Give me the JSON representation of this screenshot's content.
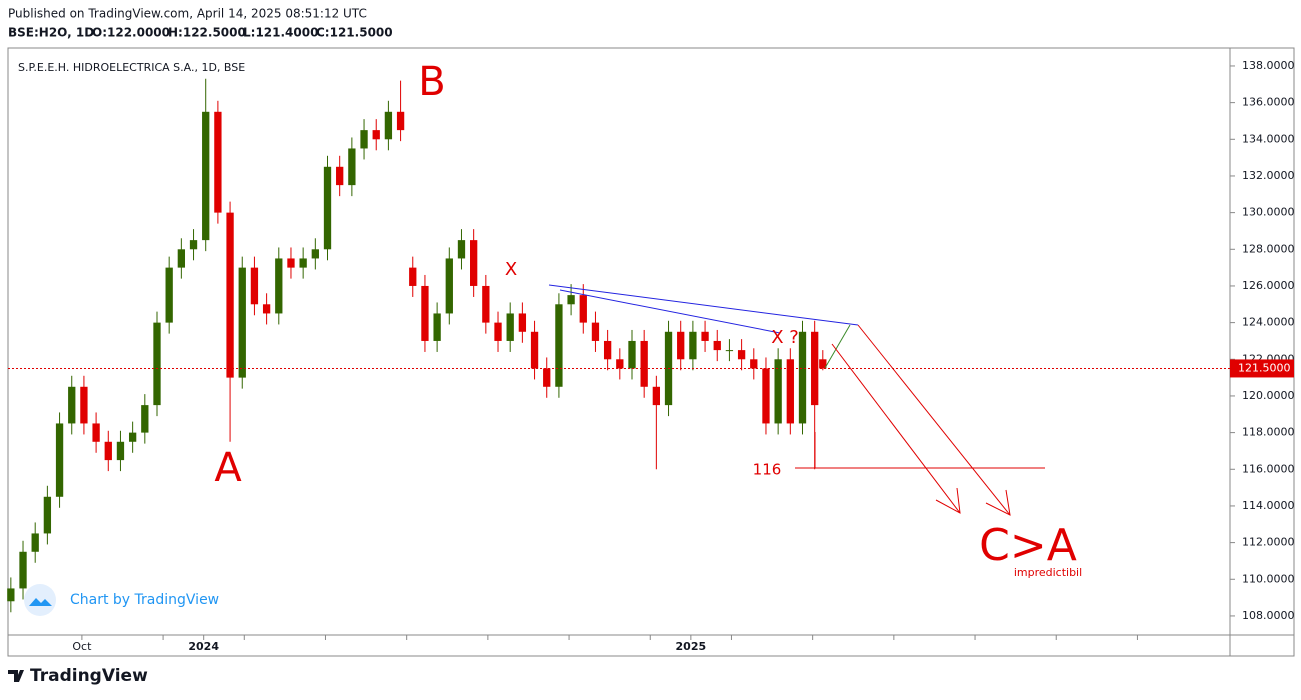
{
  "header": {
    "published": "Published on TradingView.com, April 14, 2025 08:51:12 UTC",
    "symbol": "BSE:H2O, 1D",
    "open": "O:122.0000",
    "high": "H:122.5000",
    "low": "L:121.4000",
    "close": "C:121.5000"
  },
  "chart_data": {
    "type": "candlestick",
    "title": "S.P.E.E.H. HIDROELECTRICA S.A., 1D, BSE",
    "up_color": "#336600",
    "down_color": "#e00000",
    "x": [
      -1.75,
      -1.45,
      -1.15,
      -0.85,
      -0.55,
      -0.25,
      0.05,
      0.35,
      0.65,
      0.95,
      1.25,
      1.55,
      1.85,
      2.15,
      2.45,
      2.75,
      3.05,
      3.35,
      3.65,
      3.95,
      4.25,
      4.55,
      4.85,
      5.15,
      5.45,
      5.75,
      6.05,
      6.35,
      6.65,
      6.95,
      7.25,
      7.55,
      7.85,
      8.15,
      8.45,
      8.75,
      9.05,
      9.35,
      9.65,
      9.95,
      10.25,
      10.55,
      10.85,
      11.15,
      11.45,
      11.75,
      12.05,
      12.35,
      12.65,
      12.95,
      13.25,
      13.55,
      13.85,
      14.15,
      14.45,
      14.75,
      15.05,
      15.35,
      15.65,
      15.95,
      16.25,
      16.55,
      16.85,
      17.15,
      17.45,
      17.75,
      18.05,
      18.25
    ],
    "open": [
      108.8,
      109.5,
      111.5,
      112.5,
      114.5,
      118.5,
      120.5,
      118.5,
      117.5,
      116.5,
      117.5,
      118,
      119.5,
      124,
      127,
      128,
      128.5,
      135.5,
      130,
      121,
      127,
      125,
      124.5,
      127.5,
      127,
      127.5,
      128,
      132.5,
      131.5,
      133.5,
      134.5,
      134,
      135.5,
      127,
      126,
      123,
      124.5,
      127.5,
      128.5,
      126,
      124,
      123,
      124.5,
      123.5,
      121.5,
      120.5,
      125,
      125.5,
      124,
      123,
      122,
      121.5,
      123,
      120.5,
      119.5,
      123.5,
      122,
      123.5,
      123,
      122.5,
      122.5,
      122,
      121.5,
      118.5,
      122,
      118.5,
      123.5,
      122
    ],
    "high": [
      110.1,
      112.1,
      113.1,
      115.1,
      119.1,
      121.1,
      121.1,
      119.1,
      118.1,
      118.1,
      118.6,
      120.1,
      124.6,
      127.6,
      128.6,
      129.1,
      137.3,
      136.1,
      130.6,
      127.6,
      127.6,
      125.6,
      128.1,
      128.1,
      128.1,
      128.6,
      133.1,
      133.1,
      134.1,
      135.1,
      135.1,
      136.1,
      137.2,
      127.6,
      126.6,
      125.1,
      128.1,
      129.1,
      129.1,
      126.6,
      124.6,
      125.1,
      125.1,
      124.1,
      122.1,
      125.6,
      126.1,
      126.1,
      124.6,
      123.6,
      122.6,
      123.6,
      123.6,
      121.1,
      124.1,
      124.1,
      124.1,
      124.1,
      123.6,
      123.1,
      123.1,
      122.6,
      122.1,
      122.6,
      122.6,
      124.1,
      124.1,
      122.5
    ],
    "low": [
      108.2,
      108.9,
      110.9,
      111.9,
      113.9,
      117.9,
      117.9,
      116.9,
      115.9,
      115.9,
      116.9,
      117.4,
      118.9,
      123.4,
      126.4,
      127.4,
      127.9,
      129.4,
      117.5,
      120.4,
      124.4,
      123.9,
      123.9,
      126.4,
      126.4,
      126.9,
      127.4,
      130.9,
      130.9,
      132.9,
      133.4,
      133.4,
      133.9,
      125.4,
      122.4,
      122.4,
      123.9,
      126.9,
      125.4,
      123.4,
      122.4,
      122.4,
      122.9,
      120.9,
      119.9,
      119.9,
      124.4,
      123.4,
      122.4,
      121.4,
      120.9,
      120.9,
      119.9,
      116,
      118.9,
      121.4,
      121.4,
      122.4,
      121.9,
      121.9,
      121.4,
      120.9,
      117.9,
      117.9,
      117.9,
      117.9,
      116,
      121.4
    ],
    "close": [
      109.5,
      111.5,
      112.5,
      114.5,
      118.5,
      120.5,
      118.5,
      117.5,
      116.5,
      117.5,
      118,
      119.5,
      124,
      127,
      128,
      128.5,
      135.5,
      130,
      121,
      127,
      125,
      124.5,
      127.5,
      127,
      127.5,
      128,
      132.5,
      131.5,
      133.5,
      134.5,
      134,
      135.5,
      134.5,
      126,
      123,
      124.5,
      127.5,
      128.5,
      126,
      124,
      123,
      124.5,
      123.5,
      121.5,
      120.5,
      125,
      125.5,
      124,
      123,
      122,
      121.5,
      123,
      120.5,
      119.5,
      123.5,
      122,
      123.5,
      123,
      122.5,
      122.5,
      122,
      121.5,
      118.5,
      122,
      118.5,
      123.5,
      119.5,
      121.5
    ],
    "xlim": [
      -1.82,
      28.28
    ],
    "xticks": [
      {
        "value": 0,
        "label": "Oct"
      },
      {
        "value": 2,
        "label": null
      },
      {
        "value": 3,
        "label": "2024"
      },
      {
        "value": 4,
        "label": null
      },
      {
        "value": 6,
        "label": null
      },
      {
        "value": 8,
        "label": null
      },
      {
        "value": 10,
        "label": null
      },
      {
        "value": 12,
        "label": null
      },
      {
        "value": 14,
        "label": null
      },
      {
        "value": 15,
        "label": "2025"
      },
      {
        "value": 16,
        "label": null
      },
      {
        "value": 18,
        "label": null
      },
      {
        "value": 20,
        "label": null
      },
      {
        "value": 22,
        "label": null
      },
      {
        "value": 24,
        "label": null
      },
      {
        "value": 26,
        "label": null
      }
    ],
    "ylim": [
      106.96,
      138.98
    ],
    "yticks": [
      {
        "value": 108,
        "label": "108.0000"
      },
      {
        "value": 110,
        "label": "110.0000"
      },
      {
        "value": 112,
        "label": "112.0000"
      },
      {
        "value": 114,
        "label": "114.0000"
      },
      {
        "value": 116,
        "label": "116.0000"
      },
      {
        "value": 118,
        "label": "118.0000"
      },
      {
        "value": 120,
        "label": "120.0000"
      },
      {
        "value": 122,
        "label": "122.0000"
      },
      {
        "value": 124,
        "label": "124.0000"
      },
      {
        "value": 126,
        "label": "126.0000"
      },
      {
        "value": 128,
        "label": "128.0000"
      },
      {
        "value": 130,
        "label": "130.0000"
      },
      {
        "value": 132,
        "label": "132.0000"
      },
      {
        "value": 134,
        "label": "134.0000"
      },
      {
        "value": 136,
        "label": "136.0000"
      },
      {
        "value": 138,
        "label": "138.0000"
      }
    ],
    "last_price": {
      "value": 121.5,
      "label": "121.5000",
      "color": "#e00000"
    },
    "annotations": {
      "a": "A",
      "b": "B",
      "x1": "X",
      "x2": "X ?",
      "level": "116",
      "target": "C>A",
      "note": "impredictibil"
    },
    "watermark": "Chart by TradingView"
  },
  "footer": {
    "brand": "TradingView"
  }
}
